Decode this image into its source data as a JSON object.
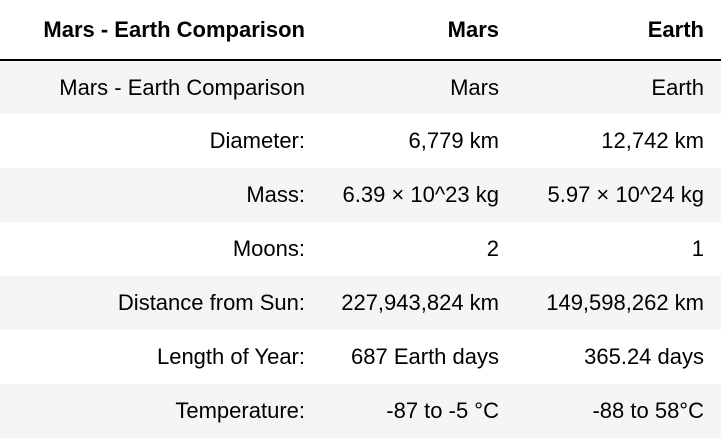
{
  "table": {
    "headers": [
      "Mars - Earth Comparison",
      "Mars",
      "Earth"
    ],
    "rows": [
      [
        "Mars - Earth Comparison",
        "Mars",
        "Earth"
      ],
      [
        "Diameter:",
        "6,779 km",
        "12,742 km"
      ],
      [
        "Mass:",
        "6.39 × 10^23 kg",
        "5.97 × 10^24 kg"
      ],
      [
        "Moons:",
        "2",
        "1"
      ],
      [
        "Distance from Sun:",
        "227,943,824 km",
        "149,598,262 km"
      ],
      [
        "Length of Year:",
        "687 Earth days",
        "365.24 days"
      ],
      [
        "Temperature:",
        "-87 to -5 °C",
        "-88 to 58°C"
      ]
    ]
  }
}
